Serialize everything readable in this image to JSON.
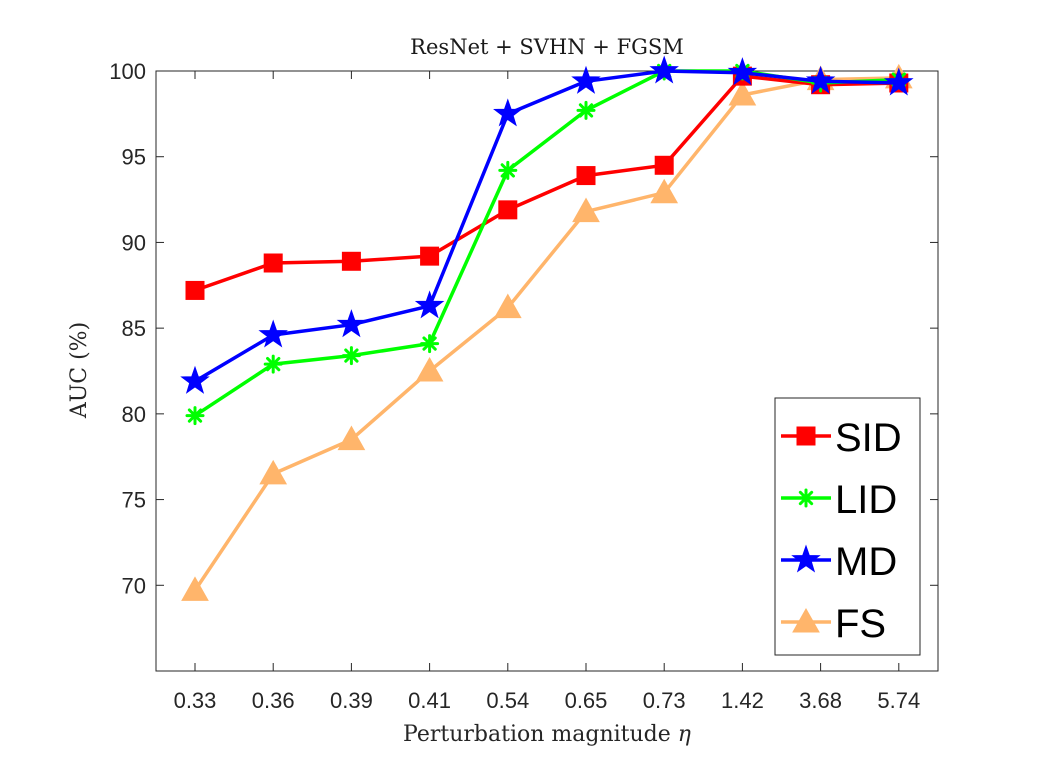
{
  "chart_data": {
    "type": "line",
    "title": "ResNet + SVHN + FGSM",
    "xlabel": "Perturbation magnitude",
    "xlabel_symbol": "η",
    "ylabel": "AUC (%)",
    "categories": [
      "0.33",
      "0.36",
      "0.39",
      "0.41",
      "0.54",
      "0.65",
      "0.73",
      "1.42",
      "3.68",
      "5.74"
    ],
    "ylim": [
      65,
      100
    ],
    "yticks": [
      70,
      75,
      80,
      85,
      90,
      95,
      100
    ],
    "grid": false,
    "legend_position": "bottom-right",
    "series": [
      {
        "name": "SID",
        "color": "#ff0000",
        "marker": "square",
        "values": [
          87.2,
          88.8,
          88.9,
          89.2,
          91.9,
          93.9,
          94.5,
          99.7,
          99.2,
          99.3
        ]
      },
      {
        "name": "LID",
        "color": "#00ff00",
        "marker": "asterisk",
        "values": [
          79.9,
          82.9,
          83.4,
          84.1,
          94.2,
          97.7,
          100.0,
          100.0,
          99.3,
          99.5
        ]
      },
      {
        "name": "MD",
        "color": "#0000ff",
        "marker": "star",
        "values": [
          81.9,
          84.6,
          85.2,
          86.3,
          97.5,
          99.4,
          100.0,
          99.9,
          99.4,
          99.3
        ]
      },
      {
        "name": "FS",
        "color": "#ffb56b",
        "marker": "triangle",
        "values": [
          69.7,
          76.5,
          78.5,
          82.5,
          86.2,
          91.8,
          92.9,
          98.6,
          99.5,
          99.6
        ]
      }
    ]
  }
}
